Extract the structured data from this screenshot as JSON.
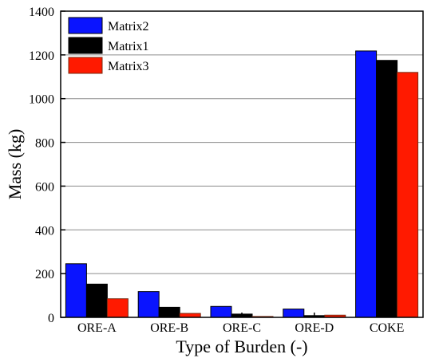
{
  "chart_data": {
    "type": "bar",
    "title": "",
    "xlabel": "Type of Burden (-)",
    "ylabel": "Mass (kg)",
    "ylim": [
      0,
      1400
    ],
    "yticks": [
      0,
      200,
      400,
      600,
      800,
      1000,
      1200,
      1400
    ],
    "grid": "horizontal",
    "legend_position": "top-left",
    "categories": [
      "ORE-A",
      "ORE-B",
      "ORE-C",
      "ORE-D",
      "COKE"
    ],
    "series": [
      {
        "name": "Matrix2",
        "color": "#0a14ff",
        "values": [
          245,
          118,
          50,
          38,
          1218
        ]
      },
      {
        "name": "Matrix1",
        "color": "#000000",
        "values": [
          152,
          46,
          15,
          8,
          1175
        ]
      },
      {
        "name": "Matrix3",
        "color": "#ff1a00",
        "edge_color": "#7a2a10",
        "values": [
          85,
          18,
          4,
          10,
          1120
        ]
      }
    ]
  }
}
